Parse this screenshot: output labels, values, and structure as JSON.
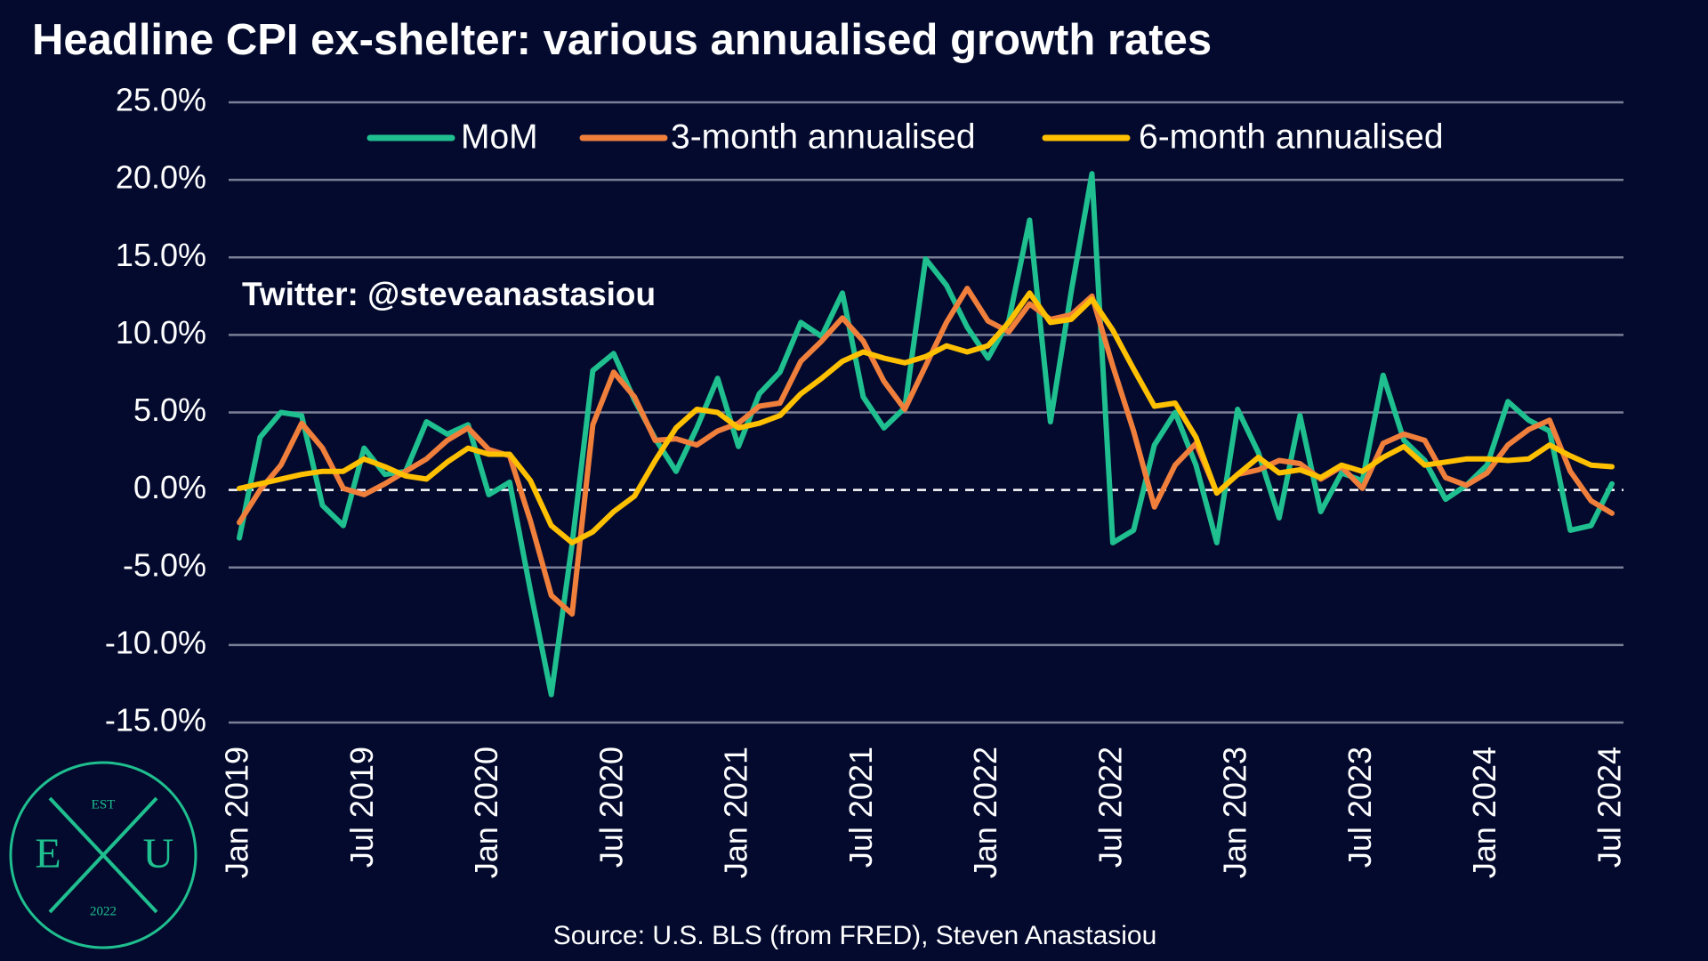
{
  "chart_data": {
    "type": "line",
    "title": "Headline CPI ex-shelter: various annualised growth rates",
    "annotation": "Twitter: @steveanastasiou",
    "source": "Source: U.S. BLS (from FRED), Steven Anastasiou",
    "categories": [
      "Jan 2019",
      null,
      null,
      null,
      null,
      null,
      "Jul 2019",
      null,
      null,
      null,
      null,
      null,
      "Jan 2020",
      null,
      null,
      null,
      null,
      null,
      "Jul 2020",
      null,
      null,
      null,
      null,
      null,
      "Jan 2021",
      null,
      null,
      null,
      null,
      null,
      "Jul 2021",
      null,
      null,
      null,
      null,
      null,
      "Jan 2022",
      null,
      null,
      null,
      null,
      null,
      "Jul 2022",
      null,
      null,
      null,
      null,
      null,
      "Jan 2023",
      null,
      null,
      null,
      null,
      null,
      "Jul 2023",
      null,
      null,
      null,
      null,
      null,
      "Jan 2024",
      null,
      null,
      null,
      null,
      null,
      "Jul 2024"
    ],
    "series": [
      {
        "name": "MoM",
        "color": "#1fbf8f",
        "values": [
          -3.1,
          3.4,
          5.0,
          4.8,
          -1.0,
          -2.3,
          2.7,
          1.0,
          1.2,
          4.4,
          3.6,
          4.2,
          -0.3,
          0.5,
          -6.5,
          -13.2,
          -3.5,
          7.7,
          8.8,
          5.8,
          3.3,
          1.2,
          4.0,
          7.2,
          2.8,
          6.2,
          7.6,
          10.8,
          9.9,
          12.7,
          6.0,
          4.0,
          5.3,
          14.9,
          13.2,
          10.5,
          8.5,
          10.9,
          17.4,
          4.4,
          12.8,
          20.4,
          -3.4,
          -2.6,
          2.9,
          5.0,
          1.6,
          -3.4,
          5.2,
          2.4,
          -1.8,
          4.8,
          -1.4,
          1.1,
          0.6,
          7.4,
          3.2,
          1.9,
          -0.6,
          0.3,
          1.6,
          5.7,
          4.5,
          3.8,
          -2.6,
          -2.3,
          0.4
        ]
      },
      {
        "name": "3-month annualised",
        "color": "#f07f3c",
        "values": [
          -2.1,
          0.0,
          1.6,
          4.3,
          2.7,
          0.1,
          -0.3,
          0.4,
          1.2,
          2.0,
          3.2,
          4.0,
          2.6,
          2.2,
          -2.0,
          -6.8,
          -8.0,
          4.2,
          7.6,
          6.0,
          3.2,
          3.3,
          2.9,
          3.8,
          4.3,
          5.4,
          5.6,
          8.3,
          9.6,
          11.1,
          9.6,
          7.0,
          5.2,
          8.0,
          10.8,
          13.0,
          10.9,
          10.2,
          12.0,
          11.0,
          11.3,
          12.5,
          8.0,
          3.8,
          -1.1,
          1.6,
          3.0,
          -0.2,
          1.0,
          1.3,
          1.9,
          1.7,
          0.7,
          1.5,
          0.1,
          3.0,
          3.6,
          3.2,
          0.8,
          0.3,
          1.1,
          2.9,
          3.9,
          4.5,
          1.2,
          -0.7,
          -1.5
        ]
      },
      {
        "name": "6-month annualised",
        "color": "#ffc000",
        "values": [
          0.1,
          0.4,
          0.7,
          1.0,
          1.2,
          1.2,
          2.0,
          1.5,
          0.9,
          0.7,
          1.8,
          2.7,
          2.3,
          2.3,
          0.6,
          -2.3,
          -3.4,
          -2.7,
          -1.4,
          -0.4,
          1.9,
          4.0,
          5.2,
          5.0,
          4.0,
          4.3,
          4.8,
          6.2,
          7.2,
          8.3,
          8.9,
          8.5,
          8.2,
          8.6,
          9.3,
          8.9,
          9.3,
          10.8,
          12.7,
          10.8,
          11.0,
          12.3,
          10.3,
          7.8,
          5.4,
          5.6,
          3.4,
          -0.2,
          1.0,
          2.1,
          1.1,
          1.3,
          0.8,
          1.6,
          1.2,
          2.1,
          2.8,
          1.6,
          1.8,
          2.0,
          2.0,
          1.9,
          2.0,
          2.9,
          2.2,
          1.6,
          1.5
        ]
      }
    ],
    "ylim": [
      -15,
      25
    ],
    "yticks": [
      {
        "value": -15,
        "label": "-15.0%"
      },
      {
        "value": -10,
        "label": "-10.0%"
      },
      {
        "value": -5,
        "label": "-5.0%"
      },
      {
        "value": 0,
        "label": "0.0%"
      },
      {
        "value": 5,
        "label": "5.0%"
      },
      {
        "value": 10,
        "label": "10.0%"
      },
      {
        "value": 15,
        "label": "15.0%"
      },
      {
        "value": 20,
        "label": "20.0%"
      },
      {
        "value": 25,
        "label": "25.0%"
      }
    ],
    "grid": true,
    "legend": "top"
  },
  "logo": {
    "top": "EST",
    "left": "E",
    "right": "U",
    "bottom": "2022"
  }
}
